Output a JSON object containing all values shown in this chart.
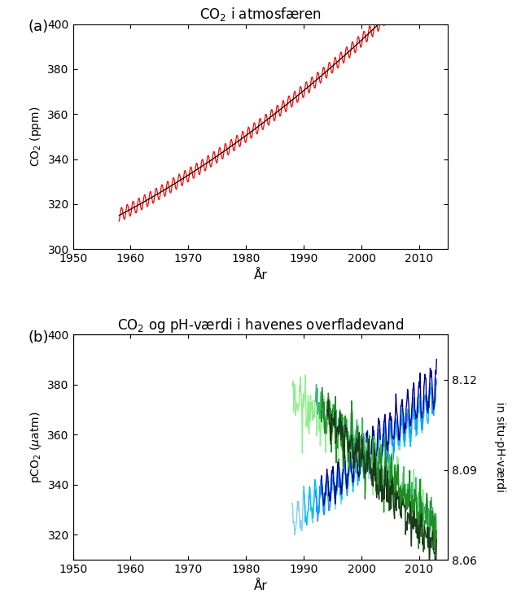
{
  "title_a": "CO$_2$ i atmosfæren",
  "title_b": "CO$_2$ og pH-værdi i havenes overfladevand",
  "xlabel": "År",
  "ylabel_a": "CO$_2$ (ppm)",
  "ylabel_b": "pCO$_2$ ($\\mu$atm)",
  "ylabel_b2": "in situ-pH-værdi",
  "label_a": "(a)",
  "label_b": "(b)",
  "ylim_a": [
    300,
    400
  ],
  "ylim_b": [
    310,
    400
  ],
  "ylim_b2": [
    8.06,
    8.135
  ],
  "xlim_a": [
    1950,
    2015
  ],
  "xlim_b": [
    1950,
    2015
  ],
  "yticks_a": [
    300,
    320,
    340,
    360,
    380,
    400
  ],
  "yticks_b": [
    320,
    340,
    360,
    380,
    400
  ],
  "xticks": [
    1950,
    1960,
    1970,
    1980,
    1990,
    2000,
    2010
  ],
  "yticks_b2": [
    8.06,
    8.09,
    8.12
  ],
  "pco2_colors": [
    "#87CEEB",
    "#00BFFF",
    "#1E90FF",
    "#00008B"
  ],
  "ph_colors": [
    "#90EE90",
    "#3CB371",
    "#228B22",
    "#1a3a1a"
  ],
  "background_color": "#ffffff"
}
